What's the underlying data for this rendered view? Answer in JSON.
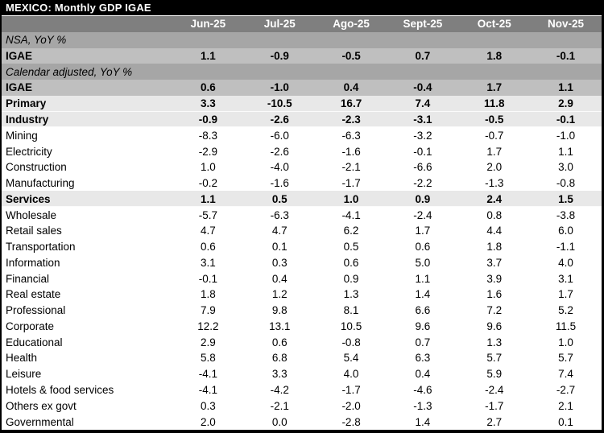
{
  "title": "MEXICO: Monthly GDP IGAE",
  "colors": {
    "title_bg": "#000000",
    "title_text": "#ffffff",
    "header_bg": "#7f7f7f",
    "header_text": "#ffffff",
    "section_bg": "#a6a6a6",
    "total_bg": "#bfbfbf",
    "subtotal_bg": "#e8e8e8",
    "detail_bg": "#ffffff",
    "text": "#000000"
  },
  "chart_data": {
    "type": "table",
    "title": "MEXICO: Monthly GDP IGAE",
    "columns": [
      "Jun-25",
      "Jul-25",
      "Ago-25",
      "Sept-25",
      "Oct-25",
      "Nov-25"
    ],
    "units": "YoY %",
    "rows": [
      {
        "label": "NSA, YoY %",
        "style": "section",
        "values": [
          "",
          "",
          "",
          "",
          "",
          ""
        ]
      },
      {
        "label": "IGAE",
        "style": "total",
        "values": [
          "1.1",
          "-0.9",
          "-0.5",
          "0.7",
          "1.8",
          "-0.1"
        ]
      },
      {
        "label": "Calendar adjusted, YoY %",
        "style": "section",
        "values": [
          "",
          "",
          "",
          "",
          "",
          ""
        ]
      },
      {
        "label": "IGAE",
        "style": "total",
        "values": [
          "0.6",
          "-1.0",
          "0.4",
          "-0.4",
          "1.7",
          "1.1"
        ]
      },
      {
        "label": "Primary",
        "style": "subtotal",
        "values": [
          "3.3",
          "-10.5",
          "16.7",
          "7.4",
          "11.8",
          "2.9"
        ]
      },
      {
        "label": "Industry",
        "style": "subtotal",
        "values": [
          "-0.9",
          "-2.6",
          "-2.3",
          "-3.1",
          "-0.5",
          "-0.1"
        ]
      },
      {
        "label": "Mining",
        "style": "detail",
        "values": [
          "-8.3",
          "-6.0",
          "-6.3",
          "-3.2",
          "-0.7",
          "-1.0"
        ]
      },
      {
        "label": "Electricity",
        "style": "detail",
        "values": [
          "-2.9",
          "-2.6",
          "-1.6",
          "-0.1",
          "1.7",
          "1.1"
        ]
      },
      {
        "label": "Construction",
        "style": "detail",
        "values": [
          "1.0",
          "-4.0",
          "-2.1",
          "-6.6",
          "2.0",
          "3.0"
        ]
      },
      {
        "label": "Manufacturing",
        "style": "detail",
        "values": [
          "-0.2",
          "-1.6",
          "-1.7",
          "-2.2",
          "-1.3",
          "-0.8"
        ]
      },
      {
        "label": "Services",
        "style": "subtotal",
        "values": [
          "1.1",
          "0.5",
          "1.0",
          "0.9",
          "2.4",
          "1.5"
        ]
      },
      {
        "label": "Wholesale",
        "style": "detail",
        "values": [
          "-5.7",
          "-6.3",
          "-4.1",
          "-2.4",
          "0.8",
          "-3.8"
        ]
      },
      {
        "label": "Retail sales",
        "style": "detail",
        "values": [
          "4.7",
          "4.7",
          "6.2",
          "1.7",
          "4.4",
          "6.0"
        ]
      },
      {
        "label": "Transportation",
        "style": "detail",
        "values": [
          "0.6",
          "0.1",
          "0.5",
          "0.6",
          "1.8",
          "-1.1"
        ]
      },
      {
        "label": "Information",
        "style": "detail",
        "values": [
          "3.1",
          "0.3",
          "0.6",
          "5.0",
          "3.7",
          "4.0"
        ]
      },
      {
        "label": "Financial",
        "style": "detail",
        "values": [
          "-0.1",
          "0.4",
          "0.9",
          "1.1",
          "3.9",
          "3.1"
        ]
      },
      {
        "label": "Real estate",
        "style": "detail",
        "values": [
          "1.8",
          "1.2",
          "1.3",
          "1.4",
          "1.6",
          "1.7"
        ]
      },
      {
        "label": "Professional",
        "style": "detail",
        "values": [
          "7.9",
          "9.8",
          "8.1",
          "6.6",
          "7.2",
          "5.2"
        ]
      },
      {
        "label": "Corporate",
        "style": "detail",
        "values": [
          "12.2",
          "13.1",
          "10.5",
          "9.6",
          "9.6",
          "11.5"
        ]
      },
      {
        "label": "Educational",
        "style": "detail",
        "values": [
          "2.9",
          "0.6",
          "-0.8",
          "0.7",
          "1.3",
          "1.0"
        ]
      },
      {
        "label": "Health",
        "style": "detail",
        "values": [
          "5.8",
          "6.8",
          "5.4",
          "6.3",
          "5.7",
          "5.7"
        ]
      },
      {
        "label": "Leisure",
        "style": "detail",
        "values": [
          "-4.1",
          "3.3",
          "4.0",
          "0.4",
          "5.9",
          "7.4"
        ]
      },
      {
        "label": "Hotels & food services",
        "style": "detail",
        "values": [
          "-4.1",
          "-4.2",
          "-1.7",
          "-4.6",
          "-2.4",
          "-2.7"
        ]
      },
      {
        "label": "Others ex govt",
        "style": "detail",
        "values": [
          "0.3",
          "-2.1",
          "-2.0",
          "-1.3",
          "-1.7",
          "2.1"
        ]
      },
      {
        "label": "Governmental",
        "style": "detail",
        "values": [
          "2.0",
          "0.0",
          "-2.8",
          "1.4",
          "2.7",
          "0.1"
        ]
      }
    ]
  }
}
